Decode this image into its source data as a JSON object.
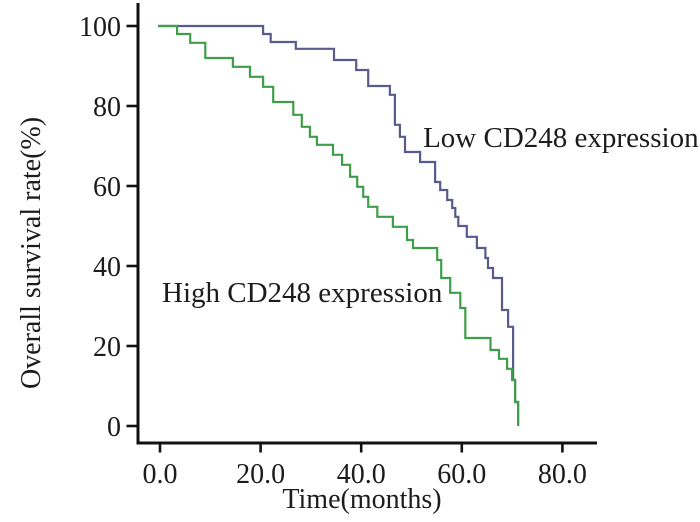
{
  "figure": {
    "background": "#ffffff",
    "axis_color": "#111111",
    "text_color": "#1c1c1c"
  },
  "chart_data": {
    "type": "line",
    "variant": "kaplan-meier-step-survival",
    "title": "",
    "xlabel": "Time(months)",
    "ylabel": "Overall survival rate(%)",
    "xlim": [
      0,
      87
    ],
    "ylim": [
      0,
      105
    ],
    "grid": false,
    "legend_position": "inline-annotations",
    "x_ticks": [
      {
        "v": 0,
        "label": "0.0"
      },
      {
        "v": 20,
        "label": "20.0"
      },
      {
        "v": 40,
        "label": "40.0"
      },
      {
        "v": 60,
        "label": "60.0"
      },
      {
        "v": 80,
        "label": "80.0"
      }
    ],
    "y_ticks": [
      {
        "v": 0,
        "label": "0"
      },
      {
        "v": 20,
        "label": "20"
      },
      {
        "v": 40,
        "label": "40"
      },
      {
        "v": 60,
        "label": "60"
      },
      {
        "v": 80,
        "label": "80"
      },
      {
        "v": 100,
        "label": "100"
      }
    ],
    "series": [
      {
        "name": "Low CD248 expression",
        "color": "#585b8c",
        "points": [
          [
            0,
            100
          ],
          [
            20.5,
            98
          ],
          [
            22,
            96
          ],
          [
            27,
            94.3
          ],
          [
            34.6,
            91.5
          ],
          [
            39,
            89
          ],
          [
            41.4,
            85
          ],
          [
            45.7,
            82.8
          ],
          [
            46.7,
            75.3
          ],
          [
            47.7,
            72.3
          ],
          [
            48.7,
            68.5
          ],
          [
            51.7,
            66
          ],
          [
            54.7,
            61
          ],
          [
            55.7,
            59
          ],
          [
            57.1,
            56.5
          ],
          [
            58.1,
            54.5
          ],
          [
            58.7,
            52.3
          ],
          [
            59.3,
            50
          ],
          [
            61,
            47.3
          ],
          [
            63,
            44.5
          ],
          [
            64.7,
            42
          ],
          [
            65.2,
            39.5
          ],
          [
            66.2,
            37
          ],
          [
            68,
            29
          ],
          [
            69.2,
            24.8
          ],
          [
            70.2,
            11.5
          ],
          [
            70.6,
            6
          ],
          [
            71.2,
            0
          ]
        ]
      },
      {
        "name": "High CD248 expression",
        "color": "#3f9e4a",
        "points": [
          [
            0,
            100
          ],
          [
            3.4,
            98
          ],
          [
            6,
            95.8
          ],
          [
            9,
            92
          ],
          [
            14.5,
            89.8
          ],
          [
            17.9,
            87.3
          ],
          [
            20.5,
            84.8
          ],
          [
            22.5,
            81
          ],
          [
            26.5,
            77.8
          ],
          [
            28.2,
            74.8
          ],
          [
            29.8,
            72.3
          ],
          [
            31.2,
            70.3
          ],
          [
            34.4,
            67.8
          ],
          [
            36.2,
            65.3
          ],
          [
            37.8,
            62.3
          ],
          [
            39.2,
            59.8
          ],
          [
            40.4,
            57.3
          ],
          [
            41.4,
            54.8
          ],
          [
            43.2,
            52.3
          ],
          [
            46.3,
            49.8
          ],
          [
            49.1,
            46.5
          ],
          [
            50.3,
            44.5
          ],
          [
            55.1,
            41.5
          ],
          [
            55.9,
            37
          ],
          [
            57.7,
            33.3
          ],
          [
            59.7,
            29.5
          ],
          [
            60.7,
            22
          ],
          [
            65.7,
            19
          ],
          [
            67.4,
            16.8
          ],
          [
            69,
            14.3
          ],
          [
            70,
            11.5
          ],
          [
            70.6,
            6
          ],
          [
            71.2,
            0
          ]
        ]
      }
    ],
    "annotations": [
      {
        "text": "Low CD248 expression",
        "x": 52.3,
        "y": 69.75
      },
      {
        "text": "High CD248 expression",
        "x": 0.4,
        "y": 31
      }
    ]
  }
}
